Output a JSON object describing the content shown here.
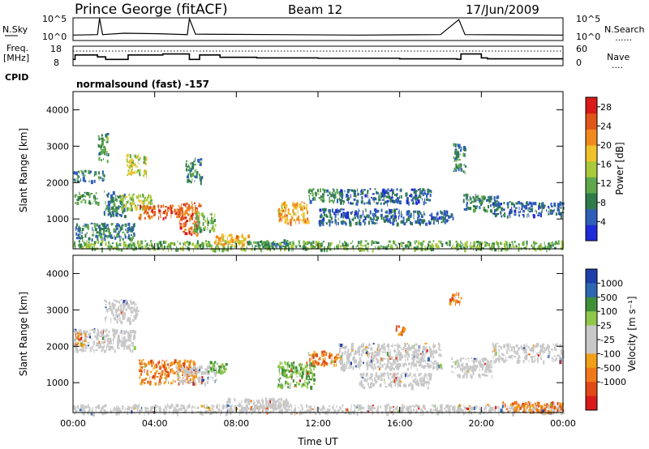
{
  "header": {
    "station": "Prince George (fitACF)",
    "beam": "Beam 12",
    "date": "17/Jun/2009"
  },
  "side_labels": {
    "nsky": "N.Sky",
    "freq": "Freq.",
    "freq_unit": "[MHz]",
    "cpid": "CPID",
    "nsearch": "N.Search",
    "nave": "Nave",
    "dots": "......",
    "dots_short": "...."
  },
  "cpid_text": "normalsound (fast) -157",
  "colors": {
    "power": [
      "#1f2bd8",
      "#2f5fb8",
      "#2f7c4a",
      "#5ea84b",
      "#a9c93a",
      "#f0c22a",
      "#f08a1e",
      "#e0561a",
      "#d81a1a"
    ],
    "velocity": [
      "#1f3fa8",
      "#2f66b2",
      "#3f8f3a",
      "#8fc84a",
      "#c8c8c8",
      "#c8c8c8",
      "#f0a018",
      "#f07818",
      "#e04818",
      "#d81a1a"
    ],
    "noise_line": "#000000"
  },
  "chart_data": [
    {
      "type": "line",
      "name": "noise",
      "y_ticks_left": [
        "10^5",
        "10^0"
      ],
      "y_ticks_right": [
        "10^5",
        "10^0"
      ],
      "series": [
        {
          "name": "N.Sky",
          "points": [
            [
              0,
              1.2
            ],
            [
              1.2,
              1.3
            ],
            [
              1.3,
              4.9
            ],
            [
              1.45,
              1.3
            ],
            [
              2.5,
              1.6
            ],
            [
              4.2,
              1.5
            ],
            [
              5.6,
              1.3
            ],
            [
              5.7,
              4.8
            ],
            [
              6.0,
              1.4
            ],
            [
              10,
              1.3
            ],
            [
              14,
              1.2
            ],
            [
              18,
              1.3
            ],
            [
              18.9,
              4.6
            ],
            [
              19.2,
              1.3
            ],
            [
              24,
              1.2
            ]
          ]
        }
      ]
    },
    {
      "type": "line",
      "name": "frequency",
      "y_ticks_left": [
        "18",
        "8"
      ],
      "y_ticks_right": [
        "60",
        "0"
      ],
      "series": [
        {
          "name": "Freq.",
          "points": [
            [
              0,
              11.2
            ],
            [
              0.1,
              13.5
            ],
            [
              1.2,
              12.5
            ],
            [
              1.6,
              11.2
            ],
            [
              2.7,
              13.5
            ],
            [
              4.0,
              13.5
            ],
            [
              4.4,
              14.0
            ],
            [
              5.7,
              11.2
            ],
            [
              6.2,
              13.5
            ],
            [
              7.2,
              12.3
            ],
            [
              9.0,
              12.0
            ],
            [
              12.0,
              11.8
            ],
            [
              16.0,
              11.5
            ],
            [
              18.8,
              11.3
            ],
            [
              19.0,
              14.0
            ],
            [
              20.0,
              12.0
            ],
            [
              20.3,
              11.5
            ],
            [
              24,
              11.5
            ]
          ]
        },
        {
          "name": "Nave",
          "dotted": true,
          "value": 45
        }
      ]
    },
    {
      "type": "heatmap",
      "name": "power",
      "xlabel": "",
      "ylabel": "Slant Range [km]",
      "x_ticks": [
        "00:00",
        "04:00",
        "08:00",
        "12:00",
        "16:00",
        "20:00",
        "00:00"
      ],
      "y_ticks": [
        1000,
        2000,
        3000,
        4000
      ],
      "xlim": [
        0,
        24
      ],
      "ylim": [
        180,
        4500
      ],
      "colorbar_label": "Power [dB]",
      "colorbar_ticks": [
        4,
        8,
        12,
        16,
        20,
        24,
        28
      ],
      "colorbar_range": [
        0,
        30
      ],
      "blobs": [
        {
          "t0": 0.0,
          "t1": 24.0,
          "r0": 180,
          "r1": 420,
          "level": 12
        },
        {
          "t0": 0.1,
          "t1": 3.0,
          "r0": 450,
          "r1": 900,
          "level": 8
        },
        {
          "t0": 0.0,
          "t1": 1.2,
          "r0": 1450,
          "r1": 1750,
          "level": 10
        },
        {
          "t0": 0.0,
          "t1": 1.5,
          "r0": 2050,
          "r1": 2350,
          "level": 8
        },
        {
          "t0": 1.2,
          "t1": 1.7,
          "r0": 2600,
          "r1": 3400,
          "level": 10
        },
        {
          "t0": 2.6,
          "t1": 3.6,
          "r0": 2200,
          "r1": 2800,
          "level": 16
        },
        {
          "t0": 1.5,
          "t1": 2.5,
          "r0": 1100,
          "r1": 1800,
          "level": 8
        },
        {
          "t0": 2.3,
          "t1": 3.8,
          "r0": 1300,
          "r1": 1700,
          "level": 14
        },
        {
          "t0": 3.2,
          "t1": 5.2,
          "r0": 1050,
          "r1": 1400,
          "level": 24
        },
        {
          "t0": 5.2,
          "t1": 6.2,
          "r0": 600,
          "r1": 1500,
          "level": 24
        },
        {
          "t0": 5.9,
          "t1": 7.0,
          "r0": 700,
          "r1": 1200,
          "level": 12
        },
        {
          "t0": 6.9,
          "t1": 8.7,
          "r0": 300,
          "r1": 600,
          "level": 20
        },
        {
          "t0": 8.7,
          "t1": 10.5,
          "r0": 250,
          "r1": 450,
          "level": 8
        },
        {
          "t0": 10.0,
          "t1": 11.5,
          "r0": 900,
          "r1": 1500,
          "level": 20
        },
        {
          "t0": 11.5,
          "t1": 13.3,
          "r0": 1500,
          "r1": 1850,
          "level": 10
        },
        {
          "t0": 12.0,
          "t1": 16.0,
          "r0": 900,
          "r1": 1300,
          "level": 6
        },
        {
          "t0": 13.0,
          "t1": 17.5,
          "r0": 1450,
          "r1": 1850,
          "level": 6
        },
        {
          "t0": 16.0,
          "t1": 18.6,
          "r0": 900,
          "r1": 1250,
          "level": 6
        },
        {
          "t0": 19.0,
          "t1": 20.8,
          "r0": 1250,
          "r1": 1700,
          "level": 8
        },
        {
          "t0": 20.5,
          "t1": 24.0,
          "r0": 1100,
          "r1": 1500,
          "level": 6
        },
        {
          "t0": 5.5,
          "t1": 6.3,
          "r0": 2000,
          "r1": 2700,
          "level": 8
        },
        {
          "t0": 18.6,
          "t1": 19.2,
          "r0": 2300,
          "r1": 3100,
          "level": 8
        }
      ]
    },
    {
      "type": "heatmap",
      "name": "velocity",
      "xlabel": "Time UT",
      "ylabel": "Slant Range [km]",
      "x_ticks": [
        "00:00",
        "04:00",
        "08:00",
        "12:00",
        "16:00",
        "20:00",
        "00:00"
      ],
      "y_ticks": [
        1000,
        2000,
        3000,
        4000
      ],
      "xlim": [
        0,
        24
      ],
      "ylim": [
        180,
        4500
      ],
      "colorbar_label": "Velocity [m s⁻¹]",
      "colorbar_ticks": [
        "1000",
        "500",
        "100",
        "25",
        "-25",
        "-100",
        "-500",
        "-1000"
      ],
      "blobs": [
        {
          "t0": 0.0,
          "t1": 24.0,
          "r0": 180,
          "r1": 420,
          "class": "gray"
        },
        {
          "t0": 0.0,
          "t1": 3.0,
          "r0": 1900,
          "r1": 2500,
          "class": "gray"
        },
        {
          "t0": 0.1,
          "t1": 0.6,
          "r0": 2000,
          "r1": 2400,
          "class": "orange"
        },
        {
          "t0": 1.5,
          "t1": 3.2,
          "r0": 2700,
          "r1": 3300,
          "class": "gray"
        },
        {
          "t0": 3.2,
          "t1": 6.0,
          "r0": 1000,
          "r1": 1650,
          "class": "orange"
        },
        {
          "t0": 5.0,
          "t1": 7.0,
          "r0": 1000,
          "r1": 1500,
          "class": "gray"
        },
        {
          "t0": 6.5,
          "t1": 7.5,
          "r0": 1300,
          "r1": 1600,
          "class": "green"
        },
        {
          "t0": 7.5,
          "t1": 10.5,
          "r0": 250,
          "r1": 600,
          "class": "gray"
        },
        {
          "t0": 10.0,
          "t1": 11.8,
          "r0": 900,
          "r1": 1600,
          "class": "green"
        },
        {
          "t0": 11.5,
          "t1": 13.2,
          "r0": 1500,
          "r1": 1900,
          "class": "orange"
        },
        {
          "t0": 13.0,
          "t1": 18.0,
          "r0": 1400,
          "r1": 2100,
          "class": "gray"
        },
        {
          "t0": 14.0,
          "t1": 17.5,
          "r0": 900,
          "r1": 1300,
          "class": "gray"
        },
        {
          "t0": 18.5,
          "t1": 20.5,
          "r0": 1200,
          "r1": 1700,
          "class": "gray"
        },
        {
          "t0": 20.5,
          "t1": 24.0,
          "r0": 1600,
          "r1": 2100,
          "class": "gray"
        },
        {
          "t0": 21.0,
          "t1": 24.0,
          "r0": 200,
          "r1": 500,
          "class": "orange"
        },
        {
          "t0": 15.8,
          "t1": 16.2,
          "r0": 2300,
          "r1": 2600,
          "class": "orange"
        },
        {
          "t0": 18.4,
          "t1": 19.0,
          "r0": 3200,
          "r1": 3500,
          "class": "orange"
        }
      ]
    }
  ]
}
